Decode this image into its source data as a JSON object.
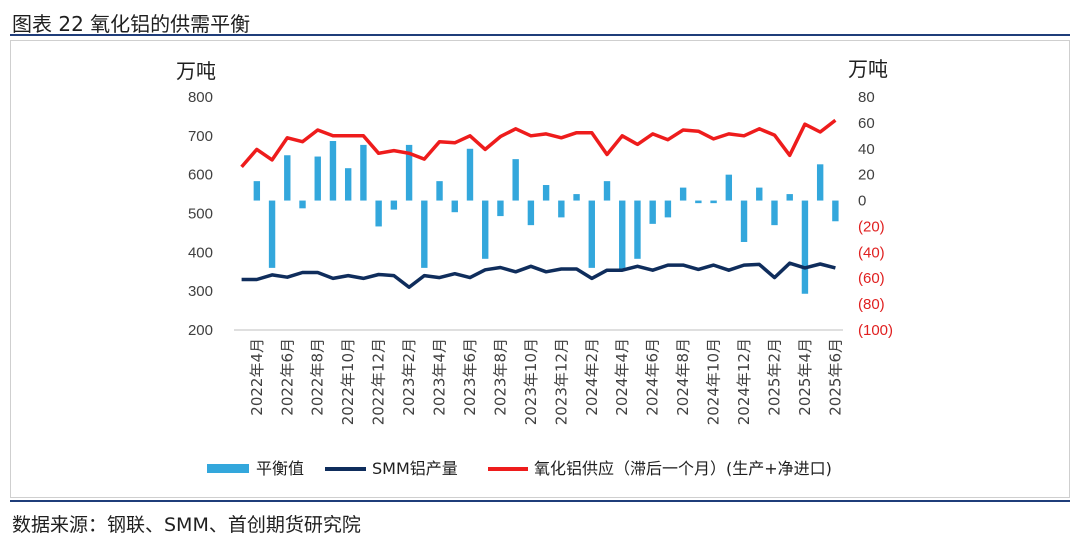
{
  "title": "图表 22 氧化铝的供需平衡",
  "source": "数据来源：钢联、SMM、首创期货研究院",
  "colors": {
    "bar": "#33a7dc",
    "production": "#0f2d5c",
    "supply": "#ee1c1c",
    "frame": "#1f3d7a"
  },
  "chart_data": {
    "type": "bar+line",
    "left_axis": {
      "unit": "万吨",
      "ylim": [
        200,
        800
      ],
      "ticks": [
        "200",
        "300",
        "400",
        "500",
        "600",
        "700",
        "800"
      ]
    },
    "right_axis": {
      "unit": "万吨",
      "ylim": [
        -100,
        80
      ],
      "ticks": [
        "(100)",
        "(80)",
        "(60)",
        "(40)",
        "(20)",
        "0",
        "20",
        "40",
        "60",
        "80"
      ]
    },
    "x_tick_labels": [
      "2022年4月",
      "2022年6月",
      "2022年8月",
      "2022年10月",
      "2022年12月",
      "2023年2月",
      "2023年4月",
      "2023年6月",
      "2023年8月",
      "2023年10月",
      "2023年12月",
      "2024年2月",
      "2024年4月",
      "2024年6月",
      "2024年8月",
      "2024年10月",
      "2024年12月",
      "2025年2月",
      "2025年4月",
      "2025年6月"
    ],
    "x": [
      "2022-03",
      "2022-04",
      "2022-05",
      "2022-06",
      "2022-07",
      "2022-08",
      "2022-09",
      "2022-10",
      "2022-11",
      "2022-12",
      "2023-01",
      "2023-02",
      "2023-03",
      "2023-04",
      "2023-05",
      "2023-06",
      "2023-07",
      "2023-08",
      "2023-09",
      "2023-10",
      "2023-11",
      "2023-12",
      "2024-01",
      "2024-02",
      "2024-03",
      "2024-04",
      "2024-05",
      "2024-06",
      "2024-07",
      "2024-08",
      "2024-09",
      "2024-10",
      "2024-11",
      "2024-12",
      "2025-01",
      "2025-02",
      "2025-03",
      "2025-04",
      "2025-05",
      "2025-06"
    ],
    "series": [
      {
        "name": "平衡值",
        "type": "bar",
        "axis": "right",
        "values": [
          null,
          15,
          -52,
          35,
          -6,
          34,
          46,
          25,
          43,
          -20,
          -7,
          43,
          -52,
          15,
          -9,
          40,
          -45,
          -12,
          32,
          -19,
          12,
          -13,
          5,
          -52,
          15,
          -53,
          -45,
          -18,
          -13,
          10,
          -2,
          -2,
          20,
          -32,
          10,
          -19,
          5,
          -72,
          28,
          -16
        ]
      },
      {
        "name": "SMM铝产量",
        "type": "line",
        "axis": "left",
        "values": [
          330,
          330,
          342,
          336,
          348,
          348,
          333,
          340,
          333,
          343,
          340,
          310,
          340,
          335,
          345,
          335,
          355,
          361,
          350,
          364,
          350,
          357,
          357,
          333,
          354,
          354,
          364,
          354,
          367,
          367,
          356,
          367,
          354,
          367,
          369,
          335,
          372,
          360,
          370,
          360
        ]
      },
      {
        "name": "氧化铝供应（滞后一个月）(生产+净进口)",
        "type": "line",
        "axis": "left",
        "values": [
          null,
          null,
          null,
          null,
          null,
          null,
          null,
          null,
          null,
          null,
          null,
          null,
          null,
          null,
          null,
          null,
          null,
          null,
          null,
          null,
          null,
          null,
          null,
          null,
          null,
          null,
          null,
          null,
          null,
          null,
          null,
          null,
          null,
          null,
          null,
          null,
          null,
          null,
          null,
          null
        ],
        "values_list": [
          620,
          665,
          638,
          695,
          685,
          715,
          700,
          700,
          700,
          655,
          662,
          655,
          640,
          685,
          682,
          700,
          665,
          698,
          718,
          700,
          705,
          695,
          708,
          708,
          652,
          700,
          678,
          705,
          690,
          715,
          712,
          692,
          705,
          700,
          718,
          702,
          650,
          730,
          710,
          740
        ]
      }
    ],
    "grid": false,
    "legend": "bottom"
  },
  "legend": {
    "bar_label": "平衡值",
    "production_label": "SMM铝产量",
    "supply_label": "氧化铝供应（滞后一个月）(生产+净进口)"
  }
}
